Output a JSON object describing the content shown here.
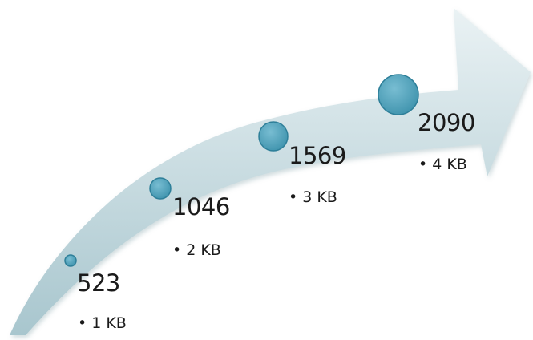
{
  "colors": {
    "arrow_fill_top": "#e8f1f3",
    "arrow_fill_bottom": "#a9c7cf",
    "circle_fill": "#4fa3bd",
    "circle_stroke": "#2e7f99",
    "text": "#1a1a1a"
  },
  "milestones": [
    {
      "value": "523",
      "size": "1 KB",
      "bullet": "•"
    },
    {
      "value": "1046",
      "size": "2 KB",
      "bullet": "•"
    },
    {
      "value": "1569",
      "size": "3 KB",
      "bullet": "•"
    },
    {
      "value": "2090",
      "size": "4 KB",
      "bullet": "•"
    }
  ]
}
